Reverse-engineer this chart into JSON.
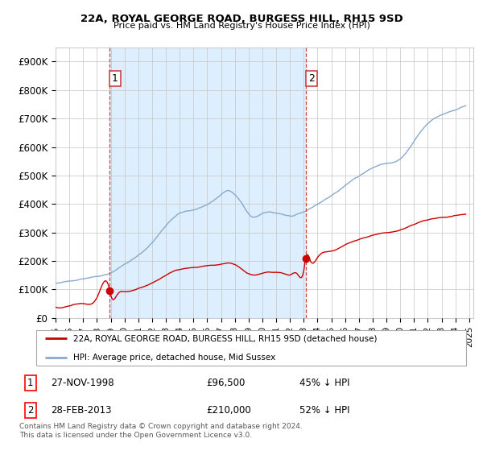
{
  "title": "22A, ROYAL GEORGE ROAD, BURGESS HILL, RH15 9SD",
  "subtitle": "Price paid vs. HM Land Registry's House Price Index (HPI)",
  "ylim": [
    0,
    950000
  ],
  "yticks": [
    0,
    100000,
    200000,
    300000,
    400000,
    500000,
    600000,
    700000,
    800000,
    900000
  ],
  "ytick_labels": [
    "£0",
    "£100K",
    "£200K",
    "£300K",
    "£400K",
    "£500K",
    "£600K",
    "£700K",
    "£800K",
    "£900K"
  ],
  "xlim_start": 1995.0,
  "xlim_end": 2025.3,
  "sale1_x": 1998.92,
  "sale1_y": 96500,
  "sale2_x": 2013.16,
  "sale2_y": 210000,
  "vline1_x": 1998.92,
  "vline2_x": 2013.16,
  "red_line_color": "#cc0000",
  "blue_line_color": "#88aacc",
  "vline_color": "#cc4444",
  "grid_color": "#cccccc",
  "shade_color": "#ddeeff",
  "background_color": "#ffffff",
  "legend_label_red": "22A, ROYAL GEORGE ROAD, BURGESS HILL, RH15 9SD (detached house)",
  "legend_label_blue": "HPI: Average price, detached house, Mid Sussex",
  "footnote": "Contains HM Land Registry data © Crown copyright and database right 2024.\nThis data is licensed under the Open Government Licence v3.0."
}
